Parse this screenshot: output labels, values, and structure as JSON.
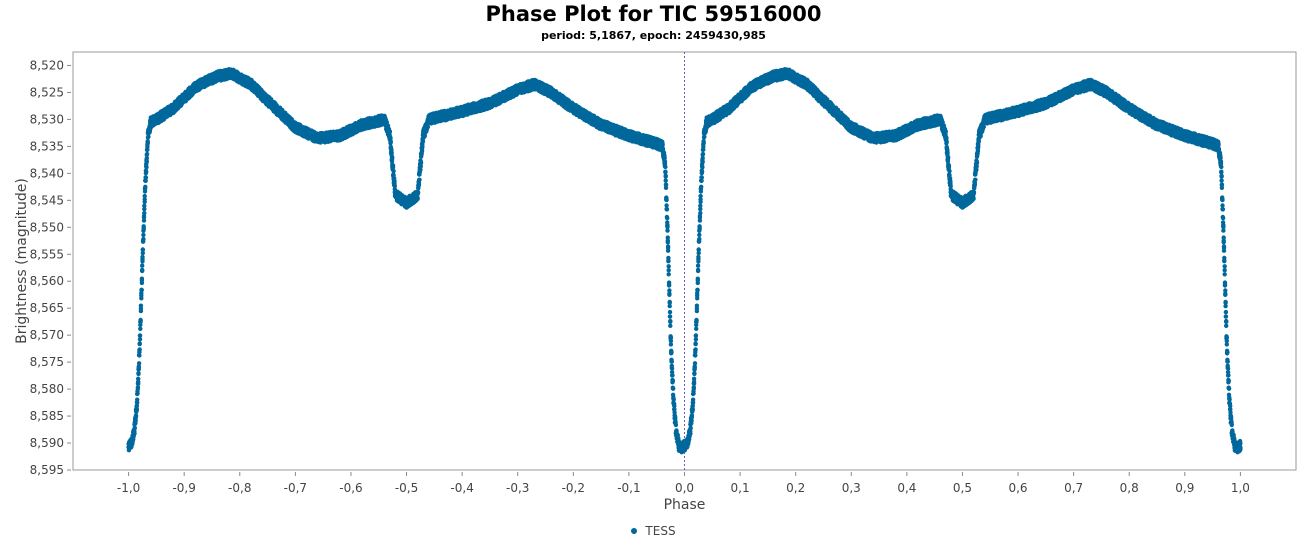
{
  "chart_data": {
    "type": "scatter",
    "title": "Phase Plot for TIC 59516000",
    "subtitle": "period: 5,1867, epoch: 2459430,985",
    "xlabel": "Phase",
    "ylabel": "Brightness (magnitude)",
    "xlim": [
      -1.1,
      1.1
    ],
    "ylim": [
      8.595,
      8.5175
    ],
    "y_inverted": true,
    "x_ticks": [
      "-1,0",
      "-0,9",
      "-0,8",
      "-0,7",
      "-0,6",
      "-0,5",
      "-0,4",
      "-0,3",
      "-0,2",
      "-0,1",
      "0,0",
      "0,1",
      "0,2",
      "0,3",
      "0,4",
      "0,5",
      "0,6",
      "0,7",
      "0,8",
      "0,9",
      "1,0"
    ],
    "y_ticks": [
      "8,520",
      "8,525",
      "8,530",
      "8,535",
      "8,540",
      "8,545",
      "8,550",
      "8,555",
      "8,560",
      "8,565",
      "8,570",
      "8,575",
      "8,580",
      "8,585",
      "8,590",
      "8,595"
    ],
    "marker_line_x": 0.0,
    "series": [
      {
        "name": "TESS",
        "color": "#00689c",
        "light_curve_one_period": [
          [
            0.0,
            8.5905
          ],
          [
            0.005,
            8.59
          ],
          [
            0.01,
            8.588
          ],
          [
            0.015,
            8.583
          ],
          [
            0.02,
            8.572
          ],
          [
            0.025,
            8.556
          ],
          [
            0.03,
            8.542
          ],
          [
            0.035,
            8.533
          ],
          [
            0.04,
            8.5305
          ],
          [
            0.05,
            8.53
          ],
          [
            0.08,
            8.528
          ],
          [
            0.12,
            8.524
          ],
          [
            0.16,
            8.522
          ],
          [
            0.185,
            8.5215
          ],
          [
            0.22,
            8.5235
          ],
          [
            0.26,
            8.5275
          ],
          [
            0.3,
            8.5315
          ],
          [
            0.34,
            8.5335
          ],
          [
            0.38,
            8.533
          ],
          [
            0.42,
            8.531
          ],
          [
            0.46,
            8.53
          ],
          [
            0.47,
            8.533
          ],
          [
            0.48,
            8.544
          ],
          [
            0.5,
            8.5455
          ],
          [
            0.52,
            8.544
          ],
          [
            0.53,
            8.533
          ],
          [
            0.54,
            8.53
          ],
          [
            0.6,
            8.5285
          ],
          [
            0.65,
            8.527
          ],
          [
            0.7,
            8.5245
          ],
          [
            0.73,
            8.5235
          ],
          [
            0.76,
            8.525
          ],
          [
            0.8,
            8.528
          ],
          [
            0.85,
            8.531
          ],
          [
            0.9,
            8.533
          ],
          [
            0.95,
            8.5345
          ],
          [
            0.96,
            8.535
          ],
          [
            0.965,
            8.538
          ],
          [
            0.97,
            8.552
          ],
          [
            0.975,
            8.57
          ],
          [
            0.98,
            8.582
          ],
          [
            0.985,
            8.588
          ],
          [
            0.99,
            8.5905
          ],
          [
            0.995,
            8.5908
          ],
          [
            1.0,
            8.5905
          ]
        ],
        "scatter_half_width": 0.0009
      }
    ],
    "legend": [
      "TESS"
    ],
    "legend_position": "bottom-center",
    "grid": false
  }
}
